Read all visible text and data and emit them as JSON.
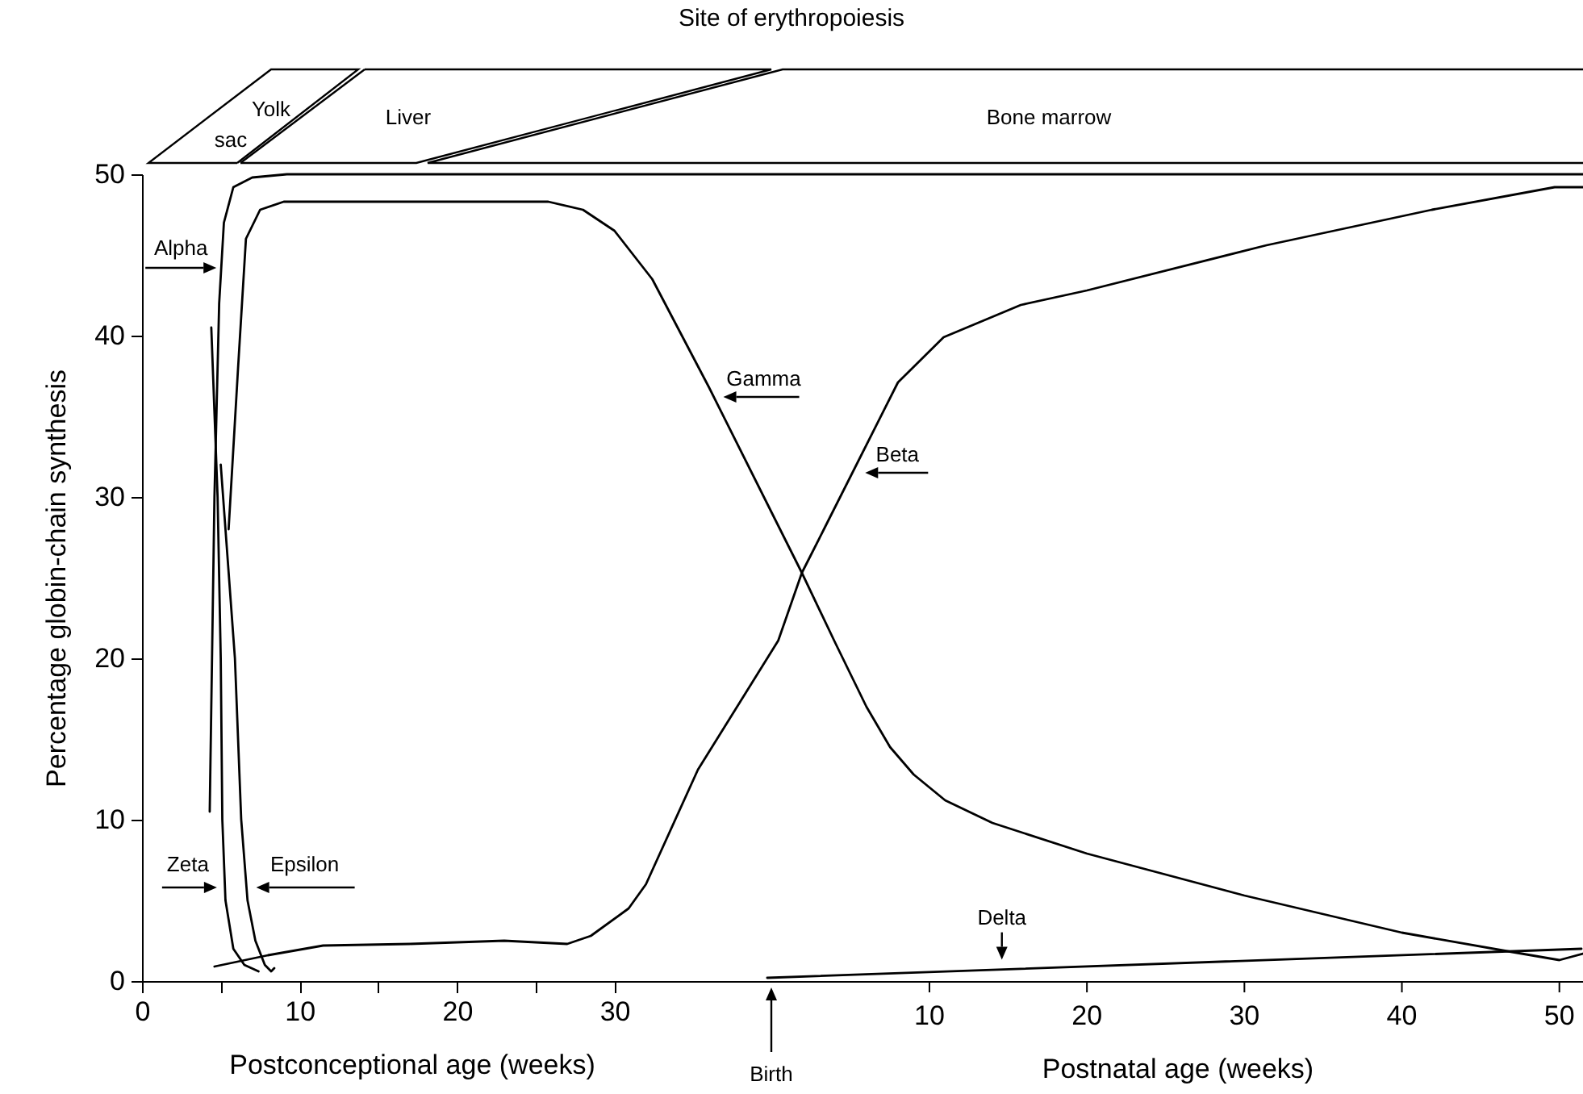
{
  "chart_data": {
    "type": "line",
    "title": "Site of erythropoiesis",
    "xlabel": "Postconceptional age (weeks)",
    "ylabel": "Percentage globin-chain synthesis",
    "xlim": [
      0,
      91.5
    ],
    "ylim": [
      0,
      50
    ],
    "xticks": [
      0,
      {
        "value": 5,
        "label": null
      },
      10,
      {
        "value": 15,
        "label": null
      },
      20,
      {
        "value": 25,
        "label": null
      },
      30
    ],
    "x2label": "Postnatal age (weeks)",
    "x2lim": [
      -40,
      51.5
    ],
    "x2ticks": [
      10,
      20,
      30,
      40,
      50
    ],
    "yticks": [
      0,
      10,
      20,
      30,
      40,
      50
    ],
    "grid": false,
    "series": [
      {
        "color": "#000000",
        "x": [
          4.3,
          4.6,
          4.9,
          5.2,
          5.8,
          7,
          9.2,
          91.5
        ],
        "values": [
          10.5,
          30,
          42,
          47,
          49.2,
          49.8,
          50,
          50
        ]
      },
      {
        "color": "#000000",
        "x": [
          4.4,
          4.8,
          5.0,
          5.1,
          5.3,
          5.8,
          6.5,
          7.4
        ],
        "values": [
          40.5,
          30,
          20,
          10,
          5,
          2,
          1,
          0.6
        ]
      },
      {
        "color": "#000000",
        "x": [
          5.0,
          5.9,
          6.3,
          6.7,
          7.2,
          7.8,
          8.2,
          8.4
        ],
        "values": [
          32,
          20,
          10,
          5,
          2.5,
          1,
          0.6,
          0.8
        ]
      },
      {
        "color": "#000000",
        "x": [
          5.5,
          6.1,
          6.6,
          7.5,
          9,
          25.8,
          28,
          30,
          32.4,
          36,
          40,
          41.9,
          44,
          46,
          47.5,
          49,
          51,
          54,
          60,
          70,
          80,
          87,
          90,
          91.5
        ],
        "values": [
          28,
          38,
          46,
          47.8,
          48.3,
          48.3,
          47.8,
          46.5,
          43.5,
          36.8,
          29,
          25.3,
          21,
          17,
          14.5,
          12.8,
          11.2,
          9.8,
          7.9,
          5.3,
          3.0,
          1.8,
          1.3,
          1.7
        ]
      },
      {
        "color": "#000000",
        "x": [
          4.6,
          8,
          11.5,
          17,
          23,
          27,
          28.5,
          30.9,
          32,
          35.3,
          40.4,
          41.9,
          43.3,
          48,
          50.9,
          55.8,
          60,
          71.4,
          81.9,
          89.7,
          91.5
        ],
        "values": [
          0.9,
          1.6,
          2.2,
          2.3,
          2.5,
          2.3,
          2.8,
          4.5,
          6,
          13.1,
          21.1,
          25.3,
          28,
          37.1,
          39.9,
          41.9,
          42.8,
          45.6,
          47.8,
          49.2,
          49.2
        ]
      },
      {
        "color": "#000000",
        "x": [
          39.7,
          91.4
        ],
        "values": [
          0.2,
          2.0
        ]
      }
    ],
    "annotations": [
      {
        "text": "Alpha",
        "x": 5.03,
        "y": 44.2
      },
      {
        "text": "Zeta",
        "x": 5.27,
        "y": 5.8
      },
      {
        "text": "Epsilon",
        "x": 6.64,
        "y": 5.8
      },
      {
        "text": "Gamma",
        "x": 36.3,
        "y": 36.2
      },
      {
        "text": "Beta",
        "x": 45.1,
        "y": 31.5
      },
      {
        "text": "Delta",
        "x": 54.6,
        "y": 0.72
      },
      "Birth",
      "Yolk",
      "sac",
      "Liver",
      "Bone marrow"
    ]
  }
}
